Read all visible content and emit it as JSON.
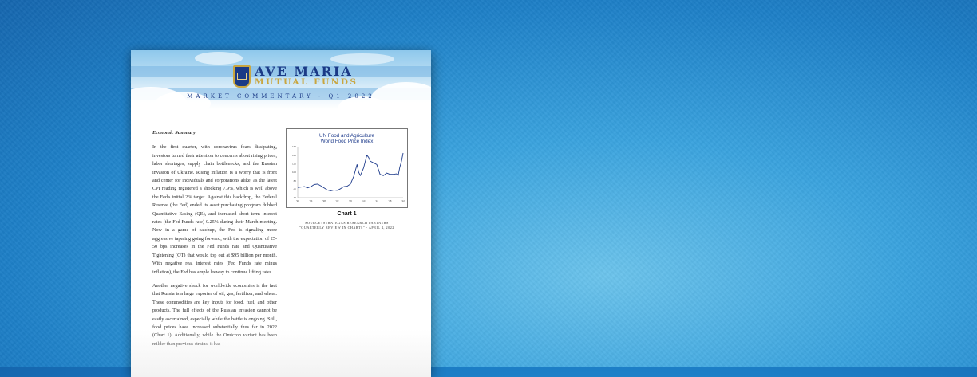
{
  "document": {
    "brand": {
      "line1": "AVE MARIA",
      "line2": "MUTUAL FUNDS"
    },
    "header_subtitle": "MARKET COMMENTARY - Q1 2022",
    "section_heading": "Economic Summary",
    "paragraphs": [
      "In the first quarter, with coronavirus fears dissipating, investors turned their attention to concerns about rising prices, labor shortages, supply chain bottlenecks, and the Russian invasion of Ukraine. Rising inflation is a worry that is front and center for individuals and corporations alike, as the latest CPI reading registered a shocking 7.9%, which is well above the Fed's initial 2% target. Against this backdrop, the Federal Reserve (the Fed) ended its asset purchasing program dubbed Quantitative Easing (QE), and increased short term interest rates (the Fed Funds rate) 0.25% during their March meeting. Now in a game of catchup, the Fed is signaling more aggressive tapering going forward, with the expectation of 25-50 bps increases in the Fed Funds rate and Quantitative Tightening (QT) that would top out at $95 billion per month. With negative real interest rates (Fed Funds rate minus inflation), the Fed has ample leeway to continue lifting rates.",
      "Another negative shock for worldwide economies is the fact that Russia is a large exporter of oil, gas, fertilizer, and wheat. These commodities are key inputs for food, fuel, and other products. The full effects of the Russian invasion cannot be easily ascertained, especially while the battle is ongoing. Still, food prices have increased substantially thus far in 2022 (Chart 1). Additionally, while the Omicron variant has been milder than previous strains, it has"
    ],
    "chart_caption": "Chart 1",
    "chart_source": [
      "SOURCE: STRATEGAS RESEARCH PARTNERS",
      "\"QUARTERLY REVIEW IN CHARTS\" - APRIL 4, 2022"
    ]
  },
  "chart_data": {
    "type": "line",
    "title": "UN Food and Agriculture World Food Price Index",
    "title_lines": [
      "UN Food and Agriculture",
      "World Food Price Index"
    ],
    "y_ticks": [
      "160",
      "140",
      "120",
      "100",
      "80",
      "60",
      "40"
    ],
    "ylim": [
      40,
      160
    ],
    "x_ticks": [
      "'90",
      "'94",
      "'98",
      "'02",
      "'06",
      "'10",
      "'14",
      "'18",
      "'22"
    ],
    "x": [
      1990,
      1991,
      1992,
      1993,
      1994,
      1995,
      1996,
      1997,
      1998,
      1999,
      2000,
      2001,
      2002,
      2003,
      2004,
      2005,
      2006,
      2007,
      2008,
      2008.5,
      2009,
      2010,
      2011,
      2011.5,
      2012,
      2013,
      2014,
      2015,
      2016,
      2017,
      2018,
      2019,
      2020,
      2020.5,
      2021,
      2021.5,
      2022
    ],
    "values": [
      64,
      65,
      66,
      63,
      66,
      71,
      72,
      68,
      63,
      58,
      56,
      58,
      57,
      61,
      66,
      67,
      72,
      90,
      118,
      100,
      92,
      110,
      140,
      135,
      126,
      122,
      118,
      95,
      92,
      98,
      95,
      95,
      96,
      92,
      112,
      125,
      145
    ],
    "series_color": "#1f3c8c"
  },
  "colors": {
    "navy": "#1b3a86",
    "gold": "#c9a640"
  }
}
